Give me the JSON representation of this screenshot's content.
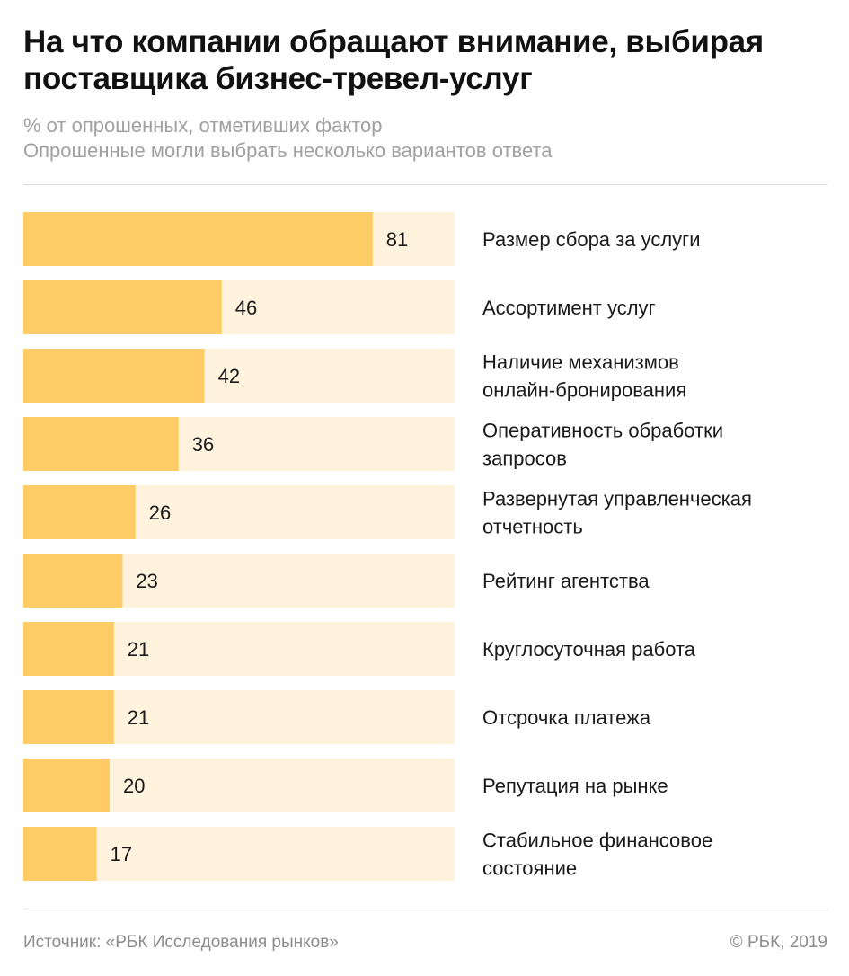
{
  "header": {
    "title": "На что компании обращают внимание, выбирая поставщика бизнес-тревел-услуг",
    "subtitle_1": "% от опрошенных, отметивших фактор",
    "subtitle_2": "Опрошенные могли выбрать несколько вариантов ответа"
  },
  "footer": {
    "source": "Источник: «РБК Исследования рынков»",
    "copyright": "© РБК, 2019"
  },
  "colors": {
    "bar": "#FFCB65",
    "track": "#FFF3DE",
    "text": "#1a1a1a"
  },
  "chart_data": {
    "type": "bar",
    "orientation": "horizontal",
    "categories": [
      "Размер сбора за услуги",
      "Ассортимент услуг",
      "Наличие механизмов онлайн-бронирования",
      "Оперативность обработки запросов",
      "Развернутая управленческая отчетность",
      "Рейтинг агентства",
      "Круглосуточная работа",
      "Отсрочка платежа",
      "Репутация на рынке",
      "Стабильное финансовое состояние"
    ],
    "category_lines": [
      [
        "Размер сбора за услуги"
      ],
      [
        "Ассортимент услуг"
      ],
      [
        "Наличие механизмов",
        "онлайн-бронирования"
      ],
      [
        "Оперативность обработки",
        "запросов"
      ],
      [
        "Развернутая управленческая",
        "отчетность"
      ],
      [
        "Рейтинг агентства"
      ],
      [
        "Круглосуточная работа"
      ],
      [
        "Отсрочка платежа"
      ],
      [
        "Репутация на рынке"
      ],
      [
        "Стабильное финансовое",
        "состояние"
      ]
    ],
    "values": [
      81,
      46,
      42,
      36,
      26,
      23,
      21,
      21,
      20,
      17
    ],
    "xlim": [
      0,
      100
    ],
    "grid": false,
    "legend": "none",
    "data_labels": true
  }
}
